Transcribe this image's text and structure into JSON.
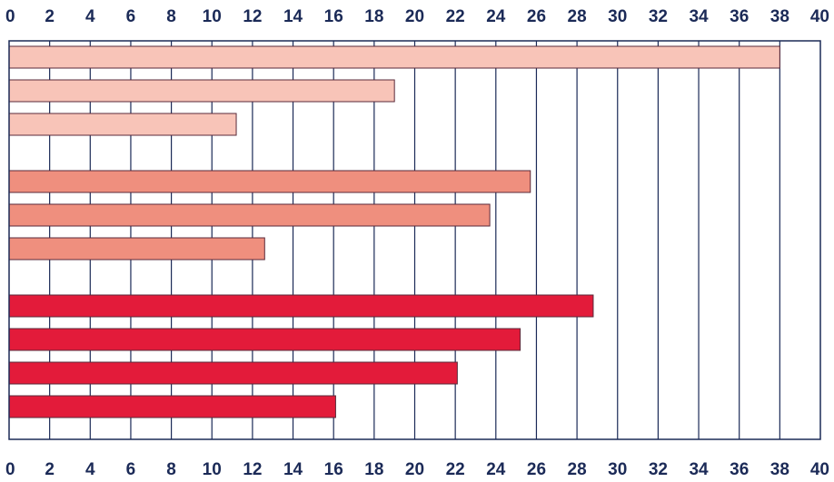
{
  "chart_data": {
    "type": "bar",
    "orientation": "horizontal",
    "title": "",
    "xlabel": "",
    "ylabel": "",
    "xlim": [
      0,
      40
    ],
    "ticks": [
      "0",
      "2",
      "4",
      "6",
      "8",
      "10",
      "12",
      "14",
      "16",
      "18",
      "20",
      "22",
      "24",
      "26",
      "28",
      "30",
      "32",
      "34",
      "36",
      "38",
      "40"
    ],
    "tick_positions": [
      "top",
      "bottom"
    ],
    "grid": true,
    "grid_color": "#1b2a57",
    "text_color": "#1b2a57",
    "bar_outline_color": "#5a2a3a",
    "groups": [
      {
        "color": "#f8c4b8",
        "values": [
          38,
          19,
          11.2
        ]
      },
      {
        "color": "#ef8f7e",
        "values": [
          25.7,
          23.7,
          12.6
        ]
      },
      {
        "color": "#e31b3a",
        "values": [
          28.8,
          25.2,
          22.1,
          16.1
        ]
      }
    ]
  }
}
